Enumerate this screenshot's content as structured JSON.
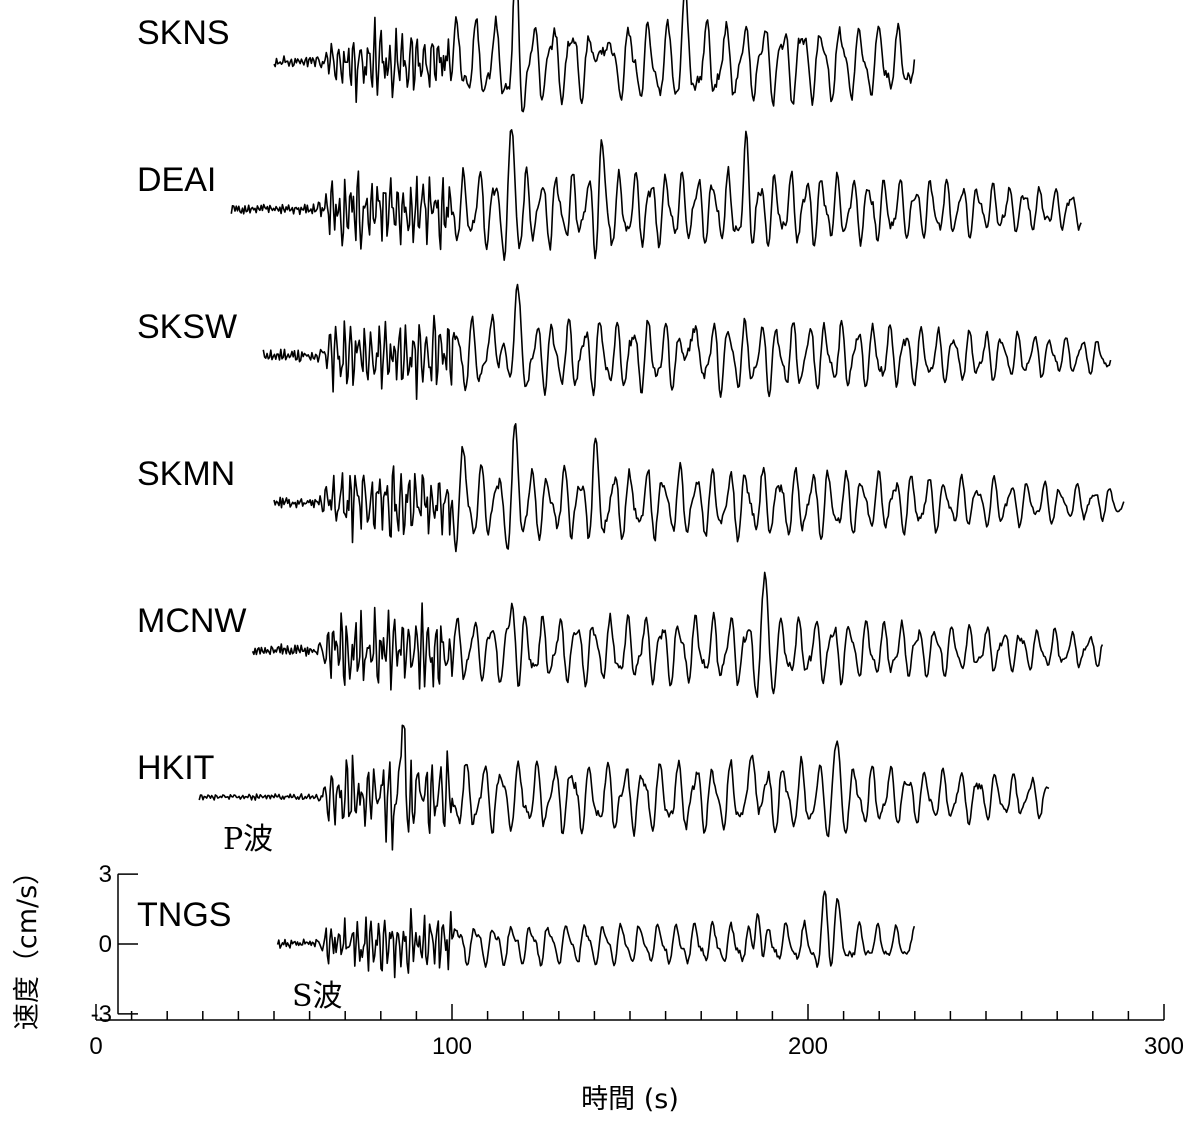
{
  "chart_data": {
    "type": "line",
    "title": "",
    "xlabel": "時間 (s)",
    "ylabel": "速度（cm/s）",
    "xlim": [
      0,
      300
    ],
    "x_ticks": [
      0,
      100,
      200,
      300
    ],
    "x_minor_step": 10,
    "ylim": [
      -3,
      3
    ],
    "y_ticks": [
      3,
      0,
      -3
    ],
    "colors": {
      "trace": "#000000",
      "background": "#ffffff"
    },
    "stations": [
      {
        "name": "SKNS",
        "t_start": 50,
        "t_end": 230,
        "noise": 0.22,
        "s_amp": 1.5,
        "surf_amp": 1.75,
        "peaks": [
          [
            118,
            3.0
          ],
          [
            142,
            2.2
          ],
          [
            165,
            2.6
          ]
        ]
      },
      {
        "name": "DEAI",
        "t_start": 38,
        "t_end": 277,
        "noise": 0.2,
        "s_amp": 1.55,
        "surf_amp": 1.6,
        "peaks": [
          [
            117,
            2.8
          ],
          [
            142,
            2.1
          ],
          [
            183,
            2.3
          ]
        ]
      },
      {
        "name": "SKSW",
        "t_start": 47,
        "t_end": 285,
        "noise": 0.26,
        "s_amp": 1.5,
        "surf_amp": 1.55,
        "peaks": [
          [
            118,
            3.3
          ],
          [
            112,
            2.2
          ],
          [
            167,
            2.0
          ]
        ]
      },
      {
        "name": "SKMN",
        "t_start": 50,
        "t_end": 289,
        "noise": 0.22,
        "s_amp": 1.45,
        "surf_amp": 1.5,
        "peaks": [
          [
            118,
            2.4
          ],
          [
            103,
            1.6
          ],
          [
            140,
            1.8
          ]
        ]
      },
      {
        "name": "MCNW",
        "t_start": 44,
        "t_end": 283,
        "noise": 0.24,
        "s_amp": 1.55,
        "surf_amp": 1.45,
        "peaks": [
          [
            117,
            1.9
          ],
          [
            188,
            2.5
          ]
        ]
      },
      {
        "name": "HKIT",
        "t_start": 29,
        "t_end": 268,
        "noise": 0.12,
        "s_amp": 1.6,
        "surf_amp": 1.5,
        "peaks": [
          [
            86,
            2.8
          ],
          [
            185,
            2.0
          ],
          [
            208,
            1.8
          ]
        ]
      },
      {
        "name": "TNGS",
        "t_start": 51,
        "t_end": 230,
        "noise": 0.18,
        "s_amp": 1.15,
        "surf_amp": 0.9,
        "peaks": [
          [
            186,
            1.7
          ],
          [
            205,
            2.0
          ],
          [
            208,
            2.2
          ]
        ]
      }
    ],
    "annotations": [
      {
        "text": "P波",
        "station": "HKIT"
      },
      {
        "text": "S波",
        "station": "TNGS"
      }
    ]
  }
}
